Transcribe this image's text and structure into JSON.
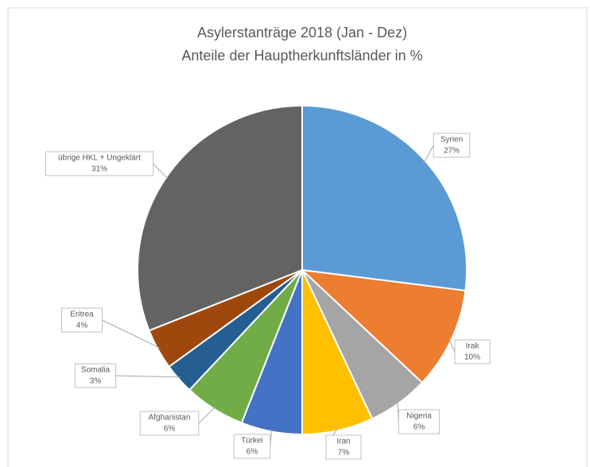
{
  "chart_data": {
    "type": "pie",
    "title": "Asylerstanträge 2018 (Jan - Dez)",
    "subtitle": "Anteile der Hauptherkunftsländer in %",
    "categories": [
      "Syrien",
      "Irak",
      "Nigeria",
      "Iran",
      "Türkei",
      "Afghanistan",
      "Somalia",
      "Eritrea",
      "übrige HKL + Ungeklärt"
    ],
    "values": [
      27,
      10,
      6,
      7,
      6,
      6,
      3,
      4,
      31
    ],
    "value_labels": [
      "27%",
      "10%",
      "6%",
      "7%",
      "6%",
      "6%",
      "3%",
      "4%",
      "31%"
    ],
    "colors": [
      "#5b9bd5",
      "#ed7d31",
      "#a5a5a5",
      "#ffc000",
      "#4472c4",
      "#70ad47",
      "#255e91",
      "#9e480e",
      "#636363"
    ]
  }
}
